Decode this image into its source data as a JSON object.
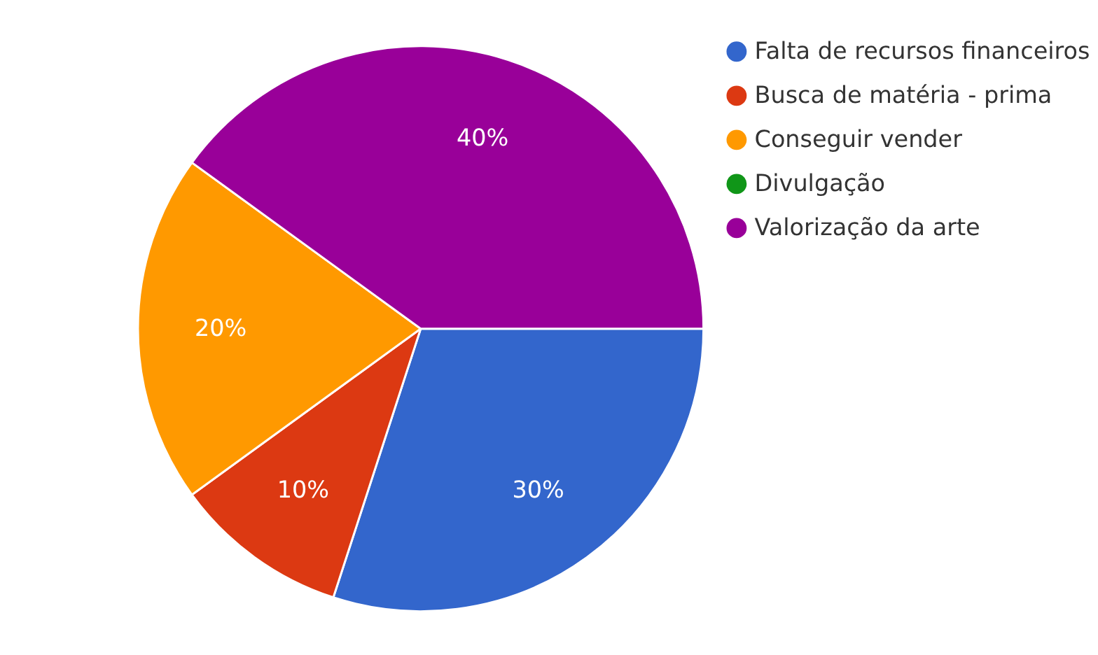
{
  "chart_data": {
    "type": "pie",
    "categories": [
      "Falta de recursos financeiros",
      "Busca de matéria - prima",
      "Conseguir vender",
      "Divulgação",
      "Valorização da arte"
    ],
    "values": [
      30,
      10,
      20,
      0,
      40
    ],
    "colors": [
      "#3366cc",
      "#dc3912",
      "#ff9900",
      "#109618",
      "#990099"
    ],
    "value_labels": [
      "30%",
      "10%",
      "20%",
      null,
      "40%"
    ],
    "legend": "right"
  }
}
